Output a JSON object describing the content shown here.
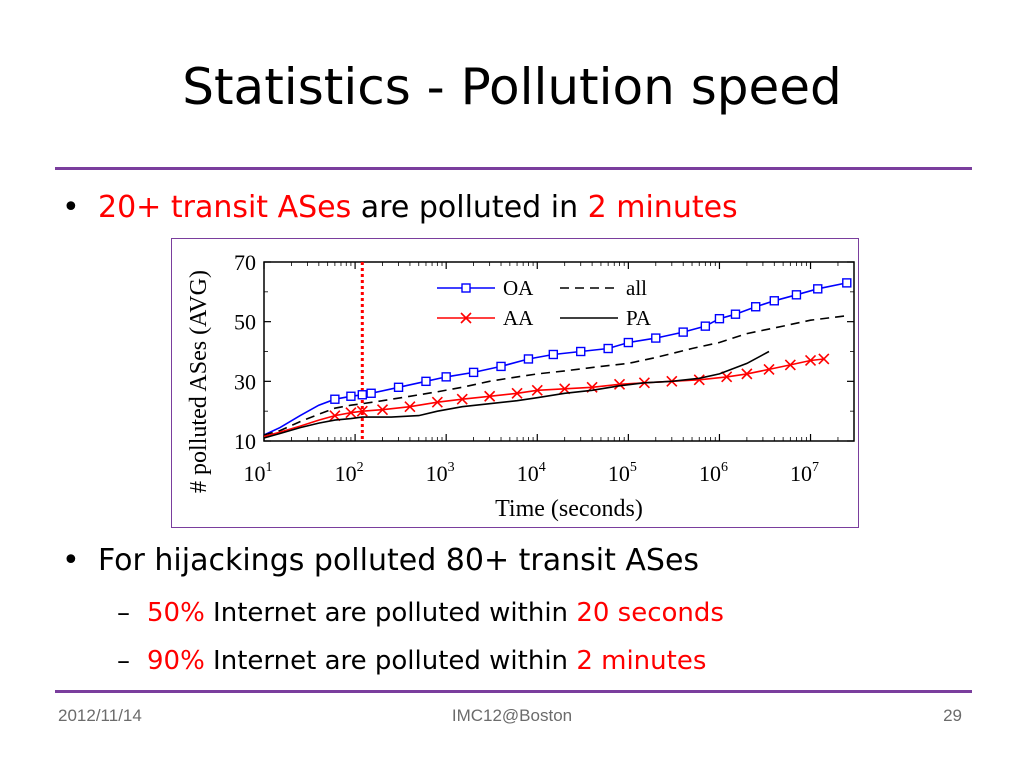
{
  "slide": {
    "title": "Statistics - Pollution speed",
    "bullets": [
      {
        "level": 1,
        "runs": [
          {
            "text": "20+ transit ASes",
            "color": "#ff0000"
          },
          {
            "text": " are polluted in ",
            "color": "#000000"
          },
          {
            "text": "2 minutes",
            "color": "#ff0000"
          }
        ]
      },
      {
        "level": 1,
        "runs": [
          {
            "text": "For hijackings polluted 80+ transit ASes",
            "color": "#000000"
          }
        ]
      },
      {
        "level": 2,
        "runs": [
          {
            "text": "50%",
            "color": "#ff0000"
          },
          {
            "text": " Internet are polluted within ",
            "color": "#000000"
          },
          {
            "text": "20 seconds",
            "color": "#ff0000"
          }
        ]
      },
      {
        "level": 2,
        "runs": [
          {
            "text": "90%",
            "color": "#ff0000"
          },
          {
            "text": " Internet are polluted within ",
            "color": "#000000"
          },
          {
            "text": "2 minutes",
            "color": "#ff0000"
          }
        ]
      }
    ],
    "bullet_symbol": "•",
    "sub_bullet_symbol": "–",
    "accent_color": "#7a3e9d",
    "footer": {
      "date": "2012/11/14",
      "center": "IMC12@Boston",
      "page": "29"
    }
  },
  "chart_data": {
    "type": "line",
    "title": "",
    "xlabel": "Time (seconds)",
    "ylabel": "# polluted ASes (AVG)",
    "xscale": "log",
    "xlim": [
      10,
      30000000
    ],
    "ylim": [
      10,
      70
    ],
    "xticks": [
      10,
      100,
      1000,
      10000,
      100000,
      1000000,
      10000000
    ],
    "yticks": [
      10,
      30,
      50,
      70
    ],
    "legend_position": "top-right",
    "reference_line": {
      "x": 120,
      "color": "#ff0000",
      "style": "dotted"
    },
    "series": [
      {
        "name": "OA",
        "color": "#0000ff",
        "style": "solid",
        "marker": "square",
        "x": [
          10,
          15,
          25,
          40,
          60,
          90,
          120,
          150,
          300,
          600,
          1000,
          2000,
          4000,
          8000,
          15000,
          30000,
          60000,
          100000,
          200000,
          400000,
          700000,
          1000000,
          1500000,
          2500000,
          4000000,
          7000000,
          12000000,
          25000000
        ],
        "y": [
          12,
          14.5,
          18.5,
          22,
          24,
          25,
          25.5,
          26,
          28,
          30,
          31.5,
          33,
          35,
          37.5,
          39,
          40,
          41,
          43,
          44.5,
          46.5,
          48.5,
          51,
          52.5,
          55,
          57,
          59,
          61,
          63
        ]
      },
      {
        "name": "all",
        "color": "#000000",
        "style": "dashed",
        "marker": "none",
        "x": [
          10,
          15,
          25,
          40,
          60,
          90,
          120,
          200,
          400,
          800,
          1500,
          3000,
          6000,
          10000,
          20000,
          50000,
          100000,
          200000,
          500000,
          1000000,
          2000000,
          5000000,
          10000000,
          25000000
        ],
        "y": [
          12,
          13.5,
          16.5,
          19,
          21,
          22,
          22.5,
          23.5,
          25,
          26.5,
          28,
          30,
          31.5,
          32.5,
          33.5,
          35,
          36,
          38,
          41,
          43,
          46,
          48.5,
          50.5,
          52
        ]
      },
      {
        "name": "AA",
        "color": "#ff0000",
        "style": "solid",
        "marker": "x",
        "x": [
          10,
          15,
          25,
          40,
          60,
          90,
          120,
          200,
          400,
          800,
          1500,
          3000,
          6000,
          10000,
          20000,
          40000,
          80000,
          150000,
          300000,
          600000,
          1200000,
          2000000,
          3500000,
          6000000,
          10000000,
          14000000
        ],
        "y": [
          11.5,
          13,
          15,
          17,
          18.5,
          19.5,
          20,
          20.5,
          21.5,
          23,
          24,
          25,
          26,
          27,
          27.5,
          28,
          29,
          29.5,
          30,
          30.5,
          31.5,
          32.5,
          34,
          35.5,
          37,
          37.5
        ]
      },
      {
        "name": "PA",
        "color": "#000000",
        "style": "solid",
        "marker": "none",
        "x": [
          10,
          15,
          25,
          40,
          60,
          90,
          120,
          250,
          500,
          800,
          1500,
          3000,
          6000,
          10000,
          20000,
          40000,
          80000,
          150000,
          300000,
          600000,
          1000000,
          2000000,
          3500000
        ],
        "y": [
          11,
          12.5,
          14.5,
          16,
          17,
          17.5,
          18,
          18,
          18.5,
          20,
          21.5,
          22.5,
          23.5,
          24.5,
          26,
          27,
          28.5,
          29.5,
          30,
          31,
          32.5,
          36,
          40
        ]
      }
    ]
  }
}
